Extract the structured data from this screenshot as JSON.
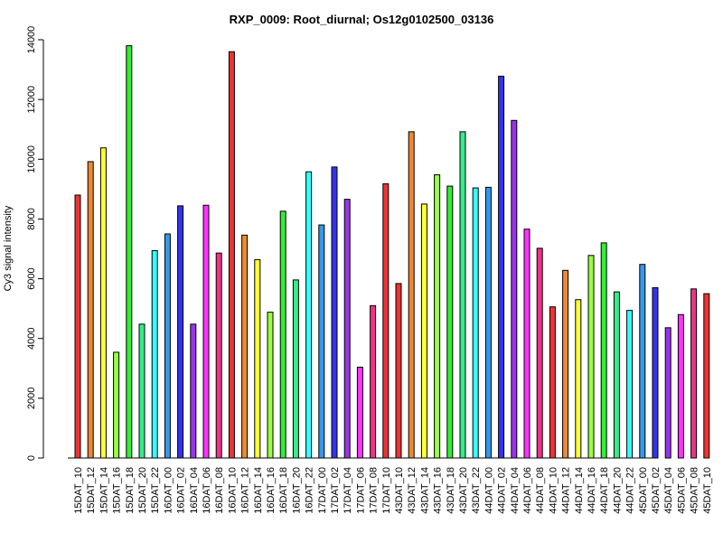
{
  "chart_data": {
    "type": "bar",
    "title": "RXP_0009: Root_diurnal; Os12g0102500_03136",
    "xlabel": "",
    "ylabel": "Cy3 signal intensity",
    "ylim": [
      0,
      14000
    ],
    "yticks": [
      0,
      2000,
      4000,
      6000,
      8000,
      10000,
      12000,
      14000
    ],
    "grid": false,
    "categories": [
      "15DAT_10",
      "15DAT_12",
      "15DAT_14",
      "15DAT_16",
      "15DAT_18",
      "15DAT_20",
      "15DAT_22",
      "16DAT_00",
      "16DAT_02",
      "16DAT_04",
      "16DAT_06",
      "16DAT_08",
      "16DAT_10",
      "16DAT_12",
      "16DAT_14",
      "16DAT_16",
      "16DAT_18",
      "16DAT_20",
      "16DAT_22",
      "17DAT_00",
      "17DAT_02",
      "17DAT_04",
      "17DAT_06",
      "17DAT_08",
      "17DAT_10",
      "43DAT_10",
      "43DAT_12",
      "43DAT_14",
      "43DAT_16",
      "43DAT_18",
      "43DAT_20",
      "43DAT_22",
      "44DAT_00",
      "44DAT_02",
      "44DAT_04",
      "44DAT_06",
      "44DAT_08",
      "44DAT_10",
      "44DAT_12",
      "44DAT_14",
      "44DAT_16",
      "44DAT_18",
      "44DAT_20",
      "44DAT_22",
      "45DAT_00",
      "45DAT_02",
      "45DAT_04",
      "45DAT_06",
      "45DAT_08",
      "45DAT_10"
    ],
    "values": [
      8800,
      9920,
      10380,
      3540,
      13800,
      4480,
      6940,
      7500,
      8440,
      4480,
      8460,
      6860,
      13600,
      7460,
      6640,
      4880,
      8260,
      5960,
      9580,
      7800,
      9740,
      8660,
      3040,
      5100,
      9180,
      5840,
      10920,
      8500,
      9480,
      9100,
      10920,
      9040,
      9060,
      12780,
      11300,
      7660,
      7020,
      5060,
      6280,
      5300,
      6780,
      7200,
      5560,
      4940,
      6480,
      5700,
      4360,
      4800,
      5660,
      5500
    ],
    "colors": [
      "#ee3333",
      "#ee8833",
      "#ffff33",
      "#99ff44",
      "#33ee33",
      "#33ee88",
      "#33ffff",
      "#3399ee",
      "#3333ee",
      "#9933ee",
      "#ff33ff",
      "#ee3388",
      "#ee3333",
      "#ee8833",
      "#ffff33",
      "#99ff44",
      "#33ee33",
      "#33ee88",
      "#33ffff",
      "#3399ee",
      "#3333ee",
      "#9933ee",
      "#ff33ff",
      "#ee3388",
      "#ee3333",
      "#ee3333",
      "#ee8833",
      "#ffff33",
      "#99ff44",
      "#33ee33",
      "#33ee88",
      "#33ffff",
      "#3399ee",
      "#3333ee",
      "#9933ee",
      "#ff33ff",
      "#ee3388",
      "#ee3333",
      "#ee8833",
      "#ffff33",
      "#99ff44",
      "#33ee33",
      "#33ee88",
      "#33ffff",
      "#3399ee",
      "#3333ee",
      "#9933ee",
      "#ff33ff",
      "#ee3388",
      "#ee3333"
    ]
  }
}
